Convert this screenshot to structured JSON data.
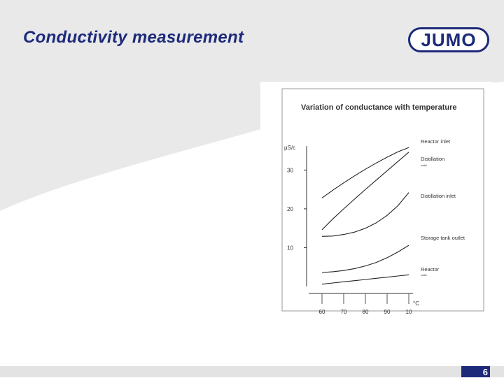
{
  "slide": {
    "title": "Conductivity measurement",
    "logo_text": "JUMO",
    "page_number": "6",
    "colors": {
      "brand_navy": "#1d2a7a",
      "background_band": "#e9e9e9",
      "footer": "#e3e3e3"
    }
  },
  "chart_data": {
    "type": "line",
    "title": "Variation of conductance with temperature",
    "ylabel": "µS/c",
    "xlabel": "°C",
    "x_ticks": [
      "60",
      "70",
      "80",
      "90",
      "10"
    ],
    "y_ticks": [
      "10",
      "20",
      "30"
    ],
    "ylim": [
      0,
      36
    ],
    "x": [
      60,
      65,
      70,
      75,
      80,
      85,
      90,
      95,
      100
    ],
    "grid": false,
    "legend": "inline-right",
    "series": [
      {
        "name": "Reactor inlet",
        "values": [
          22.8,
          24.8,
          26.7,
          28.5,
          30.2,
          31.8,
          33.3,
          34.7,
          35.8
        ]
      },
      {
        "name": "Distillation",
        "sublabel": "outlet",
        "values": [
          14.6,
          17.4,
          20.0,
          22.5,
          25.0,
          27.4,
          29.8,
          32.2,
          34.6
        ]
      },
      {
        "name": "Distillation inlet",
        "values": [
          12.9,
          13.0,
          13.4,
          14.0,
          15.0,
          16.4,
          18.3,
          20.8,
          24.2
        ]
      },
      {
        "name": "Storage tank outlet",
        "values": [
          3.6,
          3.8,
          4.1,
          4.6,
          5.3,
          6.2,
          7.4,
          8.9,
          10.6
        ]
      },
      {
        "name": "Reactor",
        "sublabel": "outlet",
        "values": [
          0.6,
          0.9,
          1.2,
          1.5,
          1.8,
          2.1,
          2.4,
          2.7,
          3.0
        ]
      }
    ]
  }
}
